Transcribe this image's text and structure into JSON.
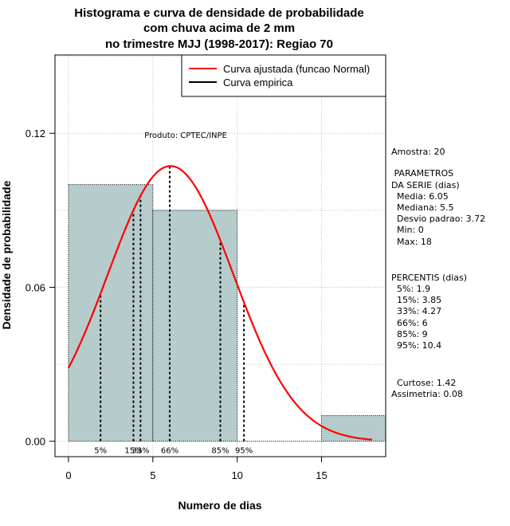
{
  "chart_data": {
    "type": "histogram",
    "title_lines": [
      "Histograma e curva de densidade de probabilidade",
      "com chuva acima de 2 mm",
      "no trimestre MJJ (1998-2017): Regiao 70"
    ],
    "xlabel": "Numero de dias",
    "ylabel": "Densidade de probabilidade",
    "xlim": [
      -0.8,
      18.8
    ],
    "ylim": [
      -0.006,
      0.1505
    ],
    "x_ticks": [
      0,
      5,
      10,
      15
    ],
    "y_ticks": [
      0.0,
      0.06,
      0.12
    ],
    "y_tick_labels": [
      "0.00",
      "0.06",
      "0.12"
    ],
    "grid": true,
    "bars": [
      {
        "x0": 0,
        "x1": 5,
        "density": 0.1
      },
      {
        "x0": 5,
        "x1": 10,
        "density": 0.09
      },
      {
        "x0": 10,
        "x1": 15,
        "density": 0.0
      },
      {
        "x0": 15,
        "x1": 20,
        "density": 0.01
      }
    ],
    "normal_fit": {
      "mean": 6.05,
      "sd": 3.72,
      "from": 0,
      "to": 18
    },
    "percentiles": [
      {
        "label": "5%",
        "value": 1.9
      },
      {
        "label": "15%",
        "value": 3.85
      },
      {
        "label": "33%",
        "value": 4.27
      },
      {
        "label": "66%",
        "value": 6
      },
      {
        "label": "85%",
        "value": 9
      },
      {
        "label": "95%",
        "value": 10.4
      }
    ],
    "legend": {
      "position": "top-right",
      "entries": [
        {
          "label": "Curva ajustada (funcao Normal)",
          "color": "#ff0000"
        },
        {
          "label": "Curva empirica",
          "color": "#000000"
        }
      ]
    },
    "colors": {
      "bar_fill": "#b6cccc",
      "curve": "#ff0000",
      "percentile_line": "#000000"
    },
    "annotation": "Produto: CPTEC/INPE"
  },
  "stats_panel": {
    "lines": [
      "Amostra: 20",
      " PARAMETROS",
      "DA SERIE (dias)",
      "  Media: 6.05",
      "  Mediana: 5.5",
      "  Desvio padrao: 3.72",
      "  Min: 0",
      "  Max: 18",
      "PERCENTIS (dias)",
      "  5%: 1.9",
      "  15%: 3.85",
      "  33%: 4.27",
      "  66%: 6",
      "  85%: 9",
      "  95%: 10.4",
      "  Curtose: 1.42",
      "Assimetria: 0.08"
    ]
  }
}
